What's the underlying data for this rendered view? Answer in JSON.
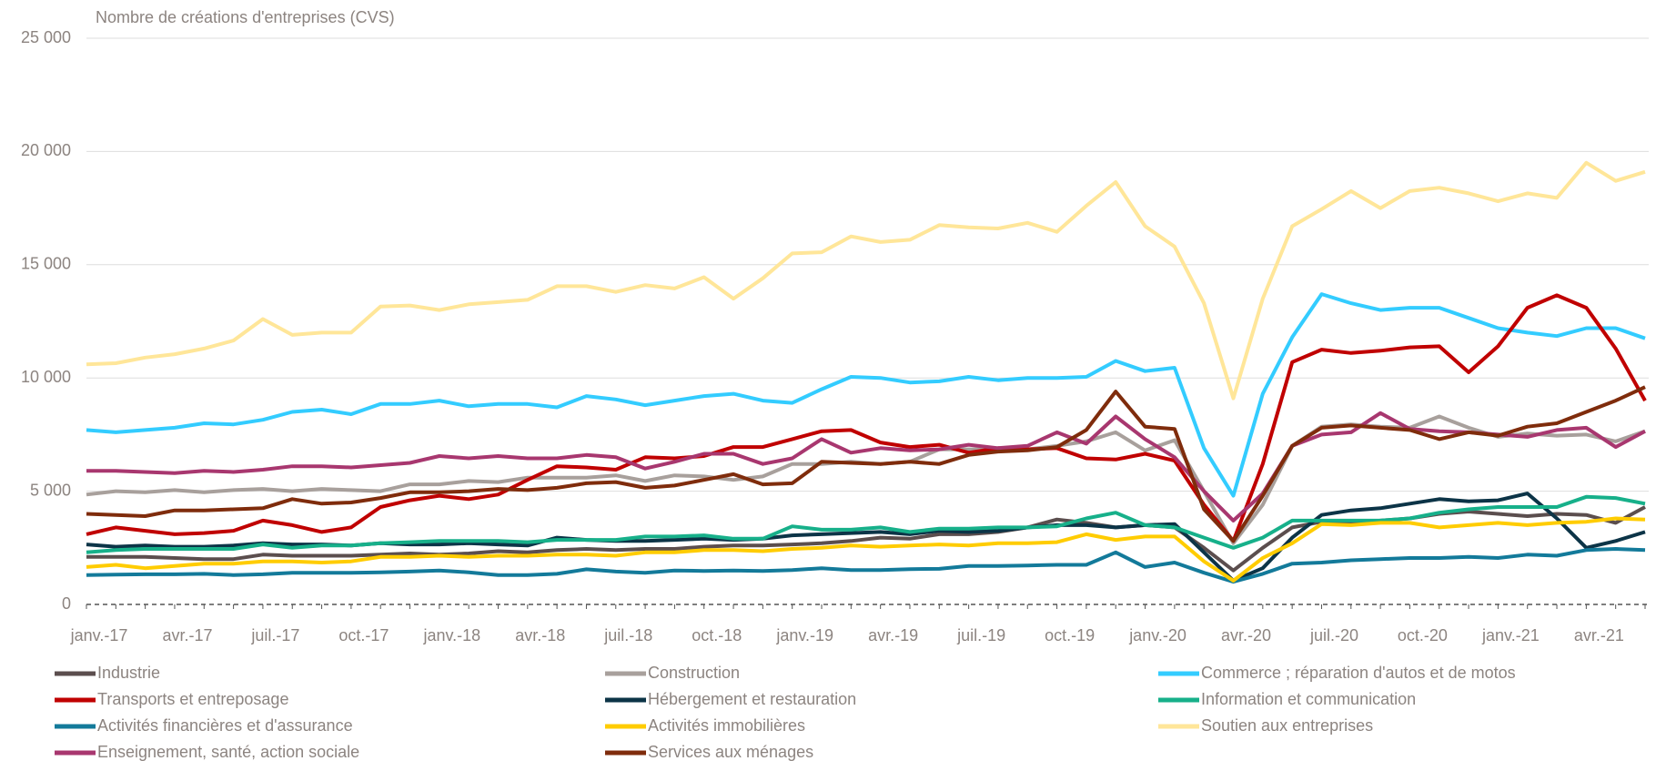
{
  "chart_data": {
    "type": "line",
    "title": "Nombre de créations d'entreprises (CVS)",
    "categories": [
      "janv.-17",
      null,
      null,
      "avr.-17",
      null,
      null,
      "juil.-17",
      null,
      null,
      "oct.-17",
      null,
      null,
      "janv.-18",
      null,
      null,
      "avr.-18",
      null,
      null,
      "juil.-18",
      null,
      null,
      "oct.-18",
      null,
      null,
      "janv.-19",
      null,
      null,
      "avr.-19",
      null,
      null,
      "juil.-19",
      null,
      null,
      "oct.-19",
      null,
      null,
      "janv.-20",
      null,
      null,
      "avr.-20",
      null,
      null,
      "juil.-20",
      null,
      null,
      "oct.-20",
      null,
      null,
      "janv.-21",
      null,
      null,
      "avr.-21",
      null,
      null
    ],
    "ylim": [
      0,
      25000
    ],
    "yticks": [
      0,
      {
        "value": 5000,
        "label": "5 000"
      },
      {
        "value": 10000,
        "label": "10 000"
      },
      {
        "value": 15000,
        "label": "15 000"
      },
      {
        "value": 20000,
        "label": "20 000"
      },
      {
        "value": 25000,
        "label": "25 000"
      }
    ],
    "grid": true,
    "legend": "bottom",
    "series": [
      {
        "name": "Industrie",
        "color": "#5b4e4e",
        "values": [
          2100,
          2100,
          2100,
          2050,
          2000,
          2000,
          2200,
          2150,
          2150,
          2150,
          2200,
          2250,
          2200,
          2250,
          2350,
          2300,
          2400,
          2450,
          2400,
          2450,
          2450,
          2550,
          2600,
          2600,
          2650,
          2700,
          2800,
          2950,
          2900,
          3100,
          3100,
          3200,
          3400,
          3750,
          3600,
          3400,
          3500,
          3400,
          2500,
          1500,
          2500,
          3400,
          3650,
          3600,
          3700,
          3800,
          4000,
          4100,
          4000,
          3900,
          4000,
          3950,
          3600,
          4300
        ]
      },
      {
        "name": "Construction",
        "color": "#a8a09c",
        "values": [
          4850,
          5000,
          4950,
          5050,
          4950,
          5050,
          5100,
          5000,
          5100,
          5050,
          5000,
          5300,
          5300,
          5450,
          5400,
          5600,
          5600,
          5600,
          5700,
          5450,
          5700,
          5650,
          5500,
          5650,
          6200,
          6200,
          6300,
          6200,
          6300,
          6850,
          6850,
          6850,
          6850,
          7000,
          7200,
          7600,
          6800,
          7250,
          5000,
          2700,
          4400,
          7000,
          7850,
          7950,
          7850,
          7800,
          8300,
          7800,
          7400,
          7550,
          7450,
          7500,
          7200,
          7650
        ]
      },
      {
        "name": "Commerce ; réparation d'autos et de motos",
        "color": "#33ccff",
        "values": [
          7700,
          7600,
          7700,
          7800,
          8000,
          7950,
          8150,
          8500,
          8600,
          8400,
          8850,
          8850,
          9000,
          8750,
          8850,
          8850,
          8700,
          9200,
          9050,
          8800,
          9000,
          9200,
          9300,
          9000,
          8900,
          9500,
          10050,
          10000,
          9800,
          9850,
          10050,
          9900,
          10000,
          10000,
          10050,
          10750,
          10300,
          10450,
          6900,
          4800,
          9300,
          11800,
          13700,
          13300,
          13000,
          13100,
          13100,
          12650,
          12200,
          12000,
          11850,
          12200,
          12200,
          11750
        ]
      },
      {
        "name": "Transports et entreposage",
        "color": "#c00000",
        "values": [
          3100,
          3400,
          3250,
          3100,
          3150,
          3250,
          3700,
          3500,
          3200,
          3400,
          4300,
          4600,
          4800,
          4650,
          4850,
          5500,
          6100,
          6050,
          5950,
          6500,
          6450,
          6550,
          6950,
          6950,
          7300,
          7650,
          7700,
          7150,
          6950,
          7050,
          6700,
          6900,
          6850,
          6900,
          6450,
          6400,
          6650,
          6350,
          4400,
          2800,
          6200,
          10700,
          11250,
          11100,
          11200,
          11350,
          11400,
          10250,
          11400,
          13100,
          13650,
          13100,
          11300,
          9000
        ]
      },
      {
        "name": "Hébergement et restauration",
        "color": "#0c3447",
        "values": [
          2650,
          2550,
          2600,
          2550,
          2550,
          2600,
          2700,
          2650,
          2650,
          2600,
          2700,
          2650,
          2650,
          2700,
          2650,
          2600,
          2950,
          2850,
          2800,
          2800,
          2850,
          2900,
          2850,
          2900,
          3050,
          3100,
          3150,
          3200,
          3100,
          3250,
          3200,
          3250,
          3400,
          3500,
          3500,
          3400,
          3500,
          3550,
          2300,
          1050,
          1600,
          2950,
          3950,
          4150,
          4250,
          4450,
          4650,
          4550,
          4600,
          4900,
          3800,
          2500,
          2800,
          3200
        ]
      },
      {
        "name": "Information et communication",
        "color": "#17b08a",
        "values": [
          2300,
          2400,
          2450,
          2450,
          2450,
          2450,
          2650,
          2500,
          2600,
          2600,
          2700,
          2750,
          2800,
          2800,
          2800,
          2750,
          2850,
          2850,
          2850,
          3000,
          3000,
          3050,
          2900,
          2900,
          3450,
          3300,
          3300,
          3400,
          3200,
          3350,
          3350,
          3400,
          3400,
          3450,
          3800,
          4050,
          3500,
          3400,
          2950,
          2500,
          2950,
          3700,
          3700,
          3700,
          3700,
          3800,
          4050,
          4200,
          4300,
          4300,
          4300,
          4750,
          4700,
          4450
        ]
      },
      {
        "name": "Activités financières et d'assurance",
        "color": "#137a9a",
        "values": [
          1300,
          1320,
          1330,
          1330,
          1350,
          1300,
          1330,
          1400,
          1400,
          1400,
          1420,
          1450,
          1500,
          1420,
          1300,
          1300,
          1350,
          1550,
          1450,
          1400,
          1500,
          1480,
          1500,
          1480,
          1520,
          1600,
          1520,
          1520,
          1560,
          1570,
          1700,
          1700,
          1720,
          1750,
          1750,
          2300,
          1650,
          1850,
          1400,
          1000,
          1350,
          1800,
          1850,
          1950,
          2000,
          2050,
          2050,
          2100,
          2050,
          2200,
          2150,
          2400,
          2450,
          2400
        ]
      },
      {
        "name": "Activités immobilières",
        "color": "#ffcc00",
        "values": [
          1650,
          1750,
          1600,
          1700,
          1800,
          1800,
          1900,
          1900,
          1850,
          1900,
          2100,
          2100,
          2150,
          2100,
          2150,
          2150,
          2200,
          2200,
          2150,
          2300,
          2300,
          2400,
          2400,
          2350,
          2450,
          2500,
          2600,
          2550,
          2600,
          2650,
          2600,
          2700,
          2700,
          2750,
          3100,
          2850,
          3000,
          3000,
          1900,
          1050,
          2050,
          2700,
          3550,
          3500,
          3600,
          3600,
          3400,
          3500,
          3600,
          3500,
          3600,
          3650,
          3800,
          3750
        ]
      },
      {
        "name": "Soutien aux entreprises",
        "color": "#ffe699",
        "values": [
          10600,
          10650,
          10900,
          11050,
          11300,
          11650,
          12600,
          11900,
          12000,
          12000,
          13150,
          13200,
          13000,
          13250,
          13350,
          13450,
          14050,
          14050,
          13800,
          14100,
          13950,
          14450,
          13500,
          14400,
          15500,
          15550,
          16250,
          16000,
          16100,
          16750,
          16650,
          16600,
          16850,
          16450,
          17600,
          18650,
          16700,
          15800,
          13300,
          9100,
          13500,
          16700,
          17450,
          18250,
          17500,
          18250,
          18400,
          18150,
          17800,
          18150,
          17950,
          19500,
          18700,
          19100
        ]
      },
      {
        "name": "Enseignement, santé, action sociale",
        "color": "#a8376f",
        "values": [
          5900,
          5900,
          5850,
          5800,
          5900,
          5850,
          5950,
          6100,
          6100,
          6050,
          6150,
          6250,
          6550,
          6450,
          6550,
          6450,
          6450,
          6600,
          6500,
          6000,
          6300,
          6650,
          6650,
          6200,
          6450,
          7300,
          6700,
          6900,
          6800,
          6850,
          7050,
          6900,
          7000,
          7600,
          7100,
          8300,
          7300,
          6500,
          5000,
          3700,
          4900,
          7000,
          7500,
          7600,
          8450,
          7750,
          7650,
          7600,
          7500,
          7400,
          7700,
          7800,
          6950,
          7650
        ]
      },
      {
        "name": "Services aux ménages",
        "color": "#7f2c0c",
        "values": [
          4000,
          3950,
          3900,
          4150,
          4150,
          4200,
          4250,
          4650,
          4450,
          4500,
          4700,
          4950,
          4950,
          5000,
          5100,
          5050,
          5150,
          5350,
          5400,
          5150,
          5250,
          5500,
          5750,
          5300,
          5350,
          6300,
          6250,
          6200,
          6300,
          6200,
          6600,
          6750,
          6800,
          6950,
          7700,
          9400,
          7850,
          7750,
          4200,
          2800,
          4800,
          7000,
          7800,
          7900,
          7800,
          7700,
          7300,
          7600,
          7450,
          7850,
          8000,
          8500,
          9000,
          9600
        ]
      }
    ]
  }
}
